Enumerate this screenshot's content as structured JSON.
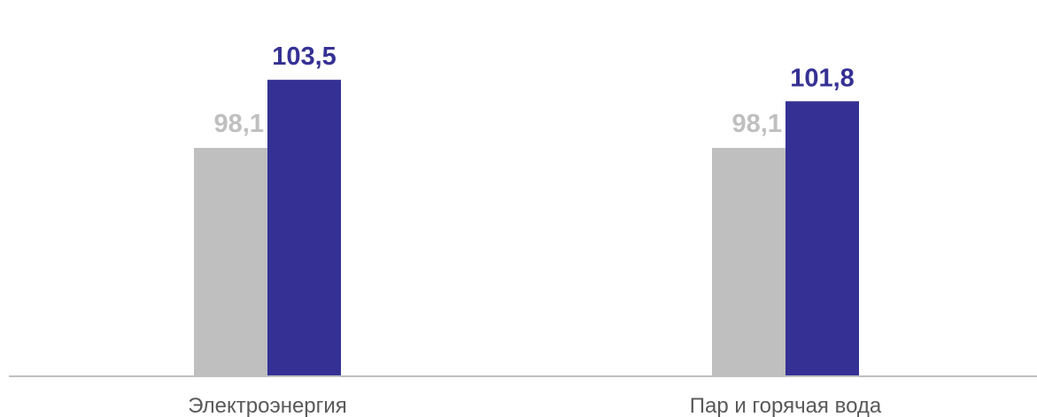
{
  "chart_data": {
    "type": "bar",
    "categories": [
      "Электроэнергия",
      "Пар и горячая вода"
    ],
    "series": [
      {
        "values": [
          98.1,
          98.1
        ],
        "labels": [
          "98,1",
          "98,1"
        ],
        "color": "#bfbfbf"
      },
      {
        "values": [
          103.5,
          101.8
        ],
        "labels": [
          "103,5",
          "101,8"
        ],
        "color": "#353194"
      }
    ],
    "ylim": [
      80,
      106
    ],
    "grid": false,
    "legend": "none",
    "axis_color": "#bfbfbf",
    "category_label_color": "#595959"
  }
}
